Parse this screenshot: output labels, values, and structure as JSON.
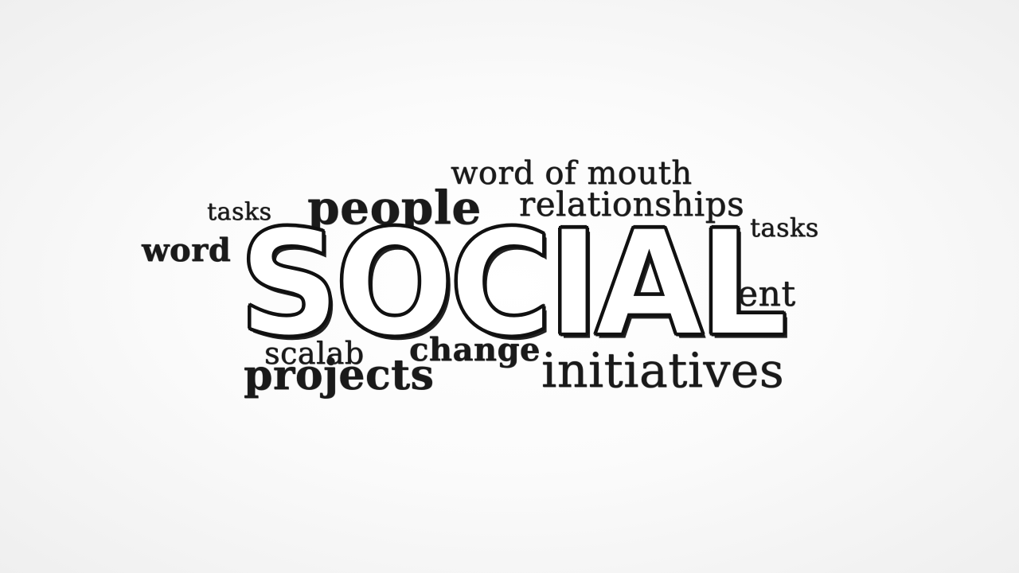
{
  "cloud": {
    "headline": "SOCIAL",
    "words": [
      "word of mouth",
      "relationships",
      "people",
      "tasks",
      "tasks",
      "word",
      "ent",
      "change",
      "scalab",
      "projects",
      "initiatives"
    ]
  },
  "colors": {
    "text": "#1a1a1a",
    "headline_fill": "#ffffff",
    "background": "#f7f7f7"
  }
}
